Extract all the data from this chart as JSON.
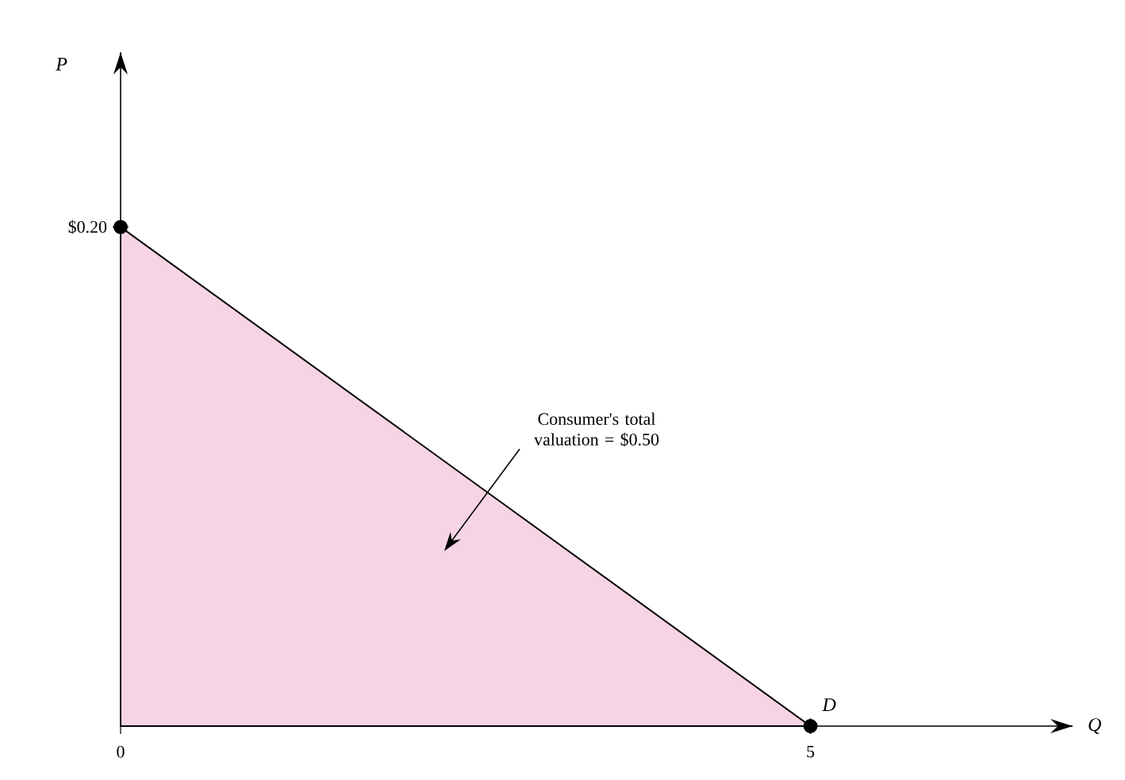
{
  "chart_data": {
    "type": "area",
    "xlabel": "Q",
    "ylabel": "P",
    "x": [
      0,
      5
    ],
    "series": [
      {
        "name": "D",
        "color": "#f7d4e4",
        "values": [
          0.2,
          0
        ]
      }
    ],
    "xlim": [
      0,
      6.9
    ],
    "ylim": [
      0,
      0.27
    ],
    "xticks": [
      0,
      5
    ],
    "yticks": [
      {
        "value": 0.2,
        "label": "$0.20"
      }
    ],
    "marker": "circle",
    "annotations": [
      "Consumer's total valuation = $0.50"
    ]
  }
}
